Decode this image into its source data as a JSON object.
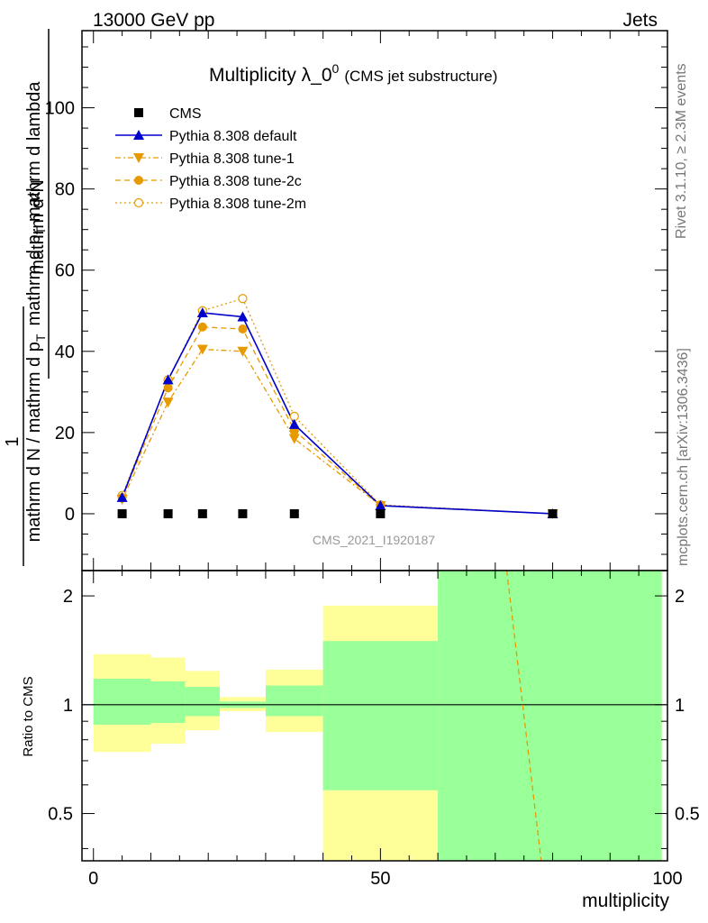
{
  "header": {
    "left": "13000 GeV pp",
    "right": "Jets"
  },
  "side_text": {
    "top": "Rivet 3.1.10, ≥ 2.3M events",
    "bottom": "mcplots.cern.ch [arXiv:1306.3436]"
  },
  "colors": {
    "cms": "#000000",
    "default": "#0000cc",
    "tune": "#e69a00",
    "ratio_inner": "#99ff99",
    "ratio_outer": "#ffff99"
  },
  "chart_data": [
    {
      "type": "line",
      "title_main": "Multiplicity λ_0",
      "title_sup": "0",
      "title_sub": "(CMS jet substructure)",
      "watermark": "CMS_2021_I1920187",
      "ylabel": {
        "numerator": "mathrm d²N",
        "denominator": "mathrm d p",
        "denominator_sub": "T",
        "denominator_rest": " mathrm d lambda",
        "prefactor_numerator": "1",
        "prefactor_denominator": "mathrm d N / mathrm d p",
        "prefactor_sub": "T"
      },
      "xlim": [
        -2,
        100
      ],
      "ylim": [
        -14,
        119
      ],
      "yticks": [
        0,
        20,
        40,
        60,
        80,
        100
      ],
      "legend_position": "top-left",
      "series": [
        {
          "name": "CMS",
          "marker": "square",
          "x": [
            5,
            13,
            19,
            26,
            35,
            50,
            80
          ],
          "y": [
            0,
            0,
            0,
            0,
            0,
            0,
            0
          ]
        },
        {
          "name": "Pythia 8.308 default",
          "marker": "triangle-up",
          "line": "solid",
          "x": [
            5,
            13,
            19,
            26,
            35,
            50,
            80
          ],
          "y": [
            4,
            33,
            49.5,
            48.5,
            22,
            2,
            0
          ]
        },
        {
          "name": "Pythia 8.308 tune-1",
          "marker": "triangle-down",
          "line": "dashdot",
          "x": [
            5,
            13,
            19,
            26,
            35,
            50,
            80
          ],
          "y": [
            3.5,
            27.5,
            40.5,
            40,
            18.5,
            2,
            0
          ]
        },
        {
          "name": "Pythia 8.308 tune-2c",
          "marker": "circle",
          "line": "dashed",
          "x": [
            5,
            13,
            19,
            26,
            35,
            50,
            80
          ],
          "y": [
            4,
            31,
            46,
            45.5,
            20.5,
            2,
            0
          ]
        },
        {
          "name": "Pythia 8.308 tune-2m",
          "marker": "open-circle",
          "line": "dotted",
          "x": [
            5,
            13,
            19,
            26,
            35,
            50,
            80
          ],
          "y": [
            4.5,
            33,
            50,
            53,
            24,
            2.2,
            0
          ]
        }
      ]
    },
    {
      "type": "area",
      "ylabel": "Ratio to CMS",
      "xlabel": "multiplicity",
      "xlim": [
        -2,
        100
      ],
      "ylim": [
        0.37,
        2.35
      ],
      "yscale": "log",
      "xticks": [
        0,
        50,
        100
      ],
      "yticks": [
        0.5,
        1,
        2
      ],
      "bands": [
        {
          "x0": 0,
          "x1": 10,
          "inner": [
            0.88,
            1.18
          ],
          "outer": [
            0.74,
            1.38
          ]
        },
        {
          "x0": 10,
          "x1": 16,
          "inner": [
            0.89,
            1.16
          ],
          "outer": [
            0.78,
            1.35
          ]
        },
        {
          "x0": 16,
          "x1": 22,
          "inner": [
            0.93,
            1.12
          ],
          "outer": [
            0.85,
            1.24
          ]
        },
        {
          "x0": 22,
          "x1": 30,
          "inner": [
            0.98,
            1.02
          ],
          "outer": [
            0.96,
            1.05
          ]
        },
        {
          "x0": 30,
          "x1": 40,
          "inner": [
            0.93,
            1.13
          ],
          "outer": [
            0.84,
            1.25
          ]
        },
        {
          "x0": 40,
          "x1": 60,
          "inner": [
            0.58,
            1.5
          ],
          "outer": [
            0.37,
            1.88
          ]
        },
        {
          "x0": 60,
          "x1": 99,
          "inner": [
            0.37,
            2.35
          ],
          "outer": [
            0.37,
            2.35
          ]
        }
      ],
      "series": [
        {
          "name": "Pythia 8.308 tune-2c",
          "line": "dashed",
          "x": [
            72,
            78
          ],
          "y": [
            2.35,
            0.37
          ]
        }
      ]
    }
  ]
}
